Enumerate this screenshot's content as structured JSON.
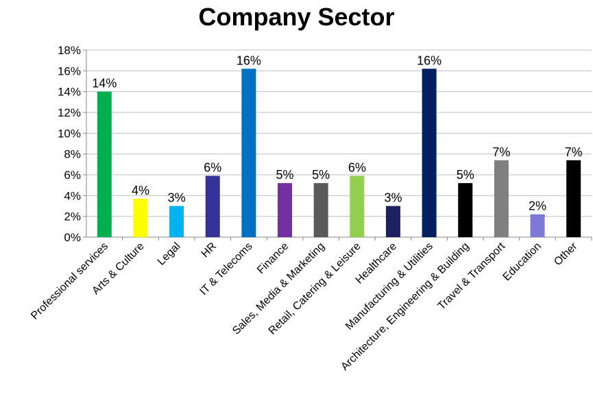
{
  "chart_data": {
    "type": "bar",
    "title": "Company Sector",
    "xlabel": "",
    "ylabel": "",
    "ylim": [
      0,
      18
    ],
    "yticks": [
      "0%",
      "2%",
      "4%",
      "6%",
      "8%",
      "10%",
      "12%",
      "14%",
      "16%",
      "18%"
    ],
    "categories": [
      "Professional services",
      "Arts & Culture",
      "Legal",
      "HR",
      "IT & Telecoms",
      "Finance",
      "Sales, Media & Marketing",
      "Retail, Catering & Leisure",
      "Healthcare",
      "Manufacturing & Utilities",
      "Architecture, Engineering & Building",
      "Travel & Transport",
      "Education",
      "Other"
    ],
    "values": [
      14,
      3.7,
      3,
      5.9,
      16.2,
      5.2,
      5.2,
      5.9,
      3,
      16.2,
      5.2,
      7.4,
      2.2,
      7.4
    ],
    "data_labels": [
      "14%",
      "4%",
      "3%",
      "6%",
      "16%",
      "5%",
      "5%",
      "6%",
      "3%",
      "16%",
      "5%",
      "7%",
      "2%",
      "7%"
    ],
    "colors": [
      "#00b050",
      "#ffff00",
      "#00b0f0",
      "#333399",
      "#0070c0",
      "#7030a0",
      "#595959",
      "#92d050",
      "#1f2060",
      "#002060",
      "#000000",
      "#808080",
      "#7b7bd6",
      "#000000"
    ],
    "grid": true,
    "legend": "none"
  }
}
